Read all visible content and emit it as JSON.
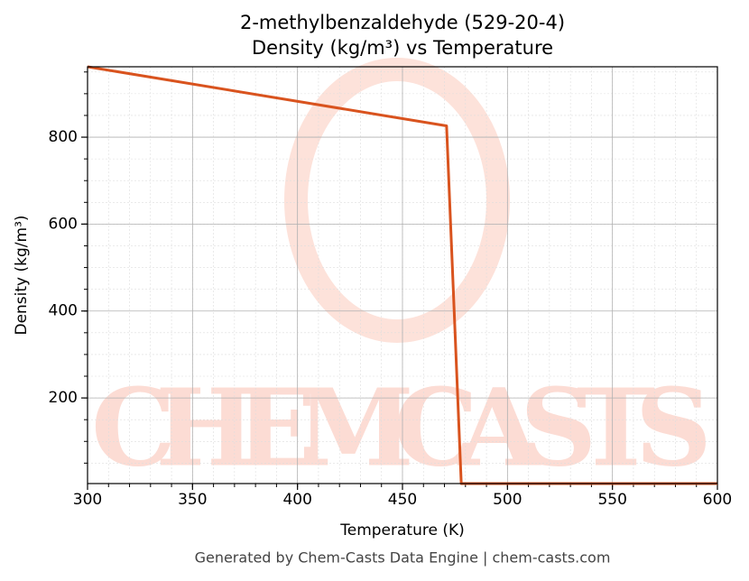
{
  "chart_data": {
    "type": "line",
    "title": "2-methylbenzaldehyde (529-20-4)",
    "subtitle": "Density (kg/m³) vs Temperature",
    "x_label": "Temperature (K)",
    "y_label": "Density (kg/m³)",
    "footer": "Generated by Chem-Casts Data Engine | chem-casts.com",
    "watermark": "CHEMCASTS",
    "x": [
      300,
      471,
      478,
      600
    ],
    "series": [
      {
        "name": "Density",
        "color": "#d9531e",
        "values": [
          962,
          826,
          3,
          3
        ]
      }
    ],
    "xlim": [
      300,
      600
    ],
    "xticks": [
      300,
      350,
      400,
      450,
      500,
      550,
      600
    ],
    "ylim": [
      3,
      962
    ],
    "yticks": [
      200,
      400,
      600,
      800
    ],
    "grid": true
  }
}
